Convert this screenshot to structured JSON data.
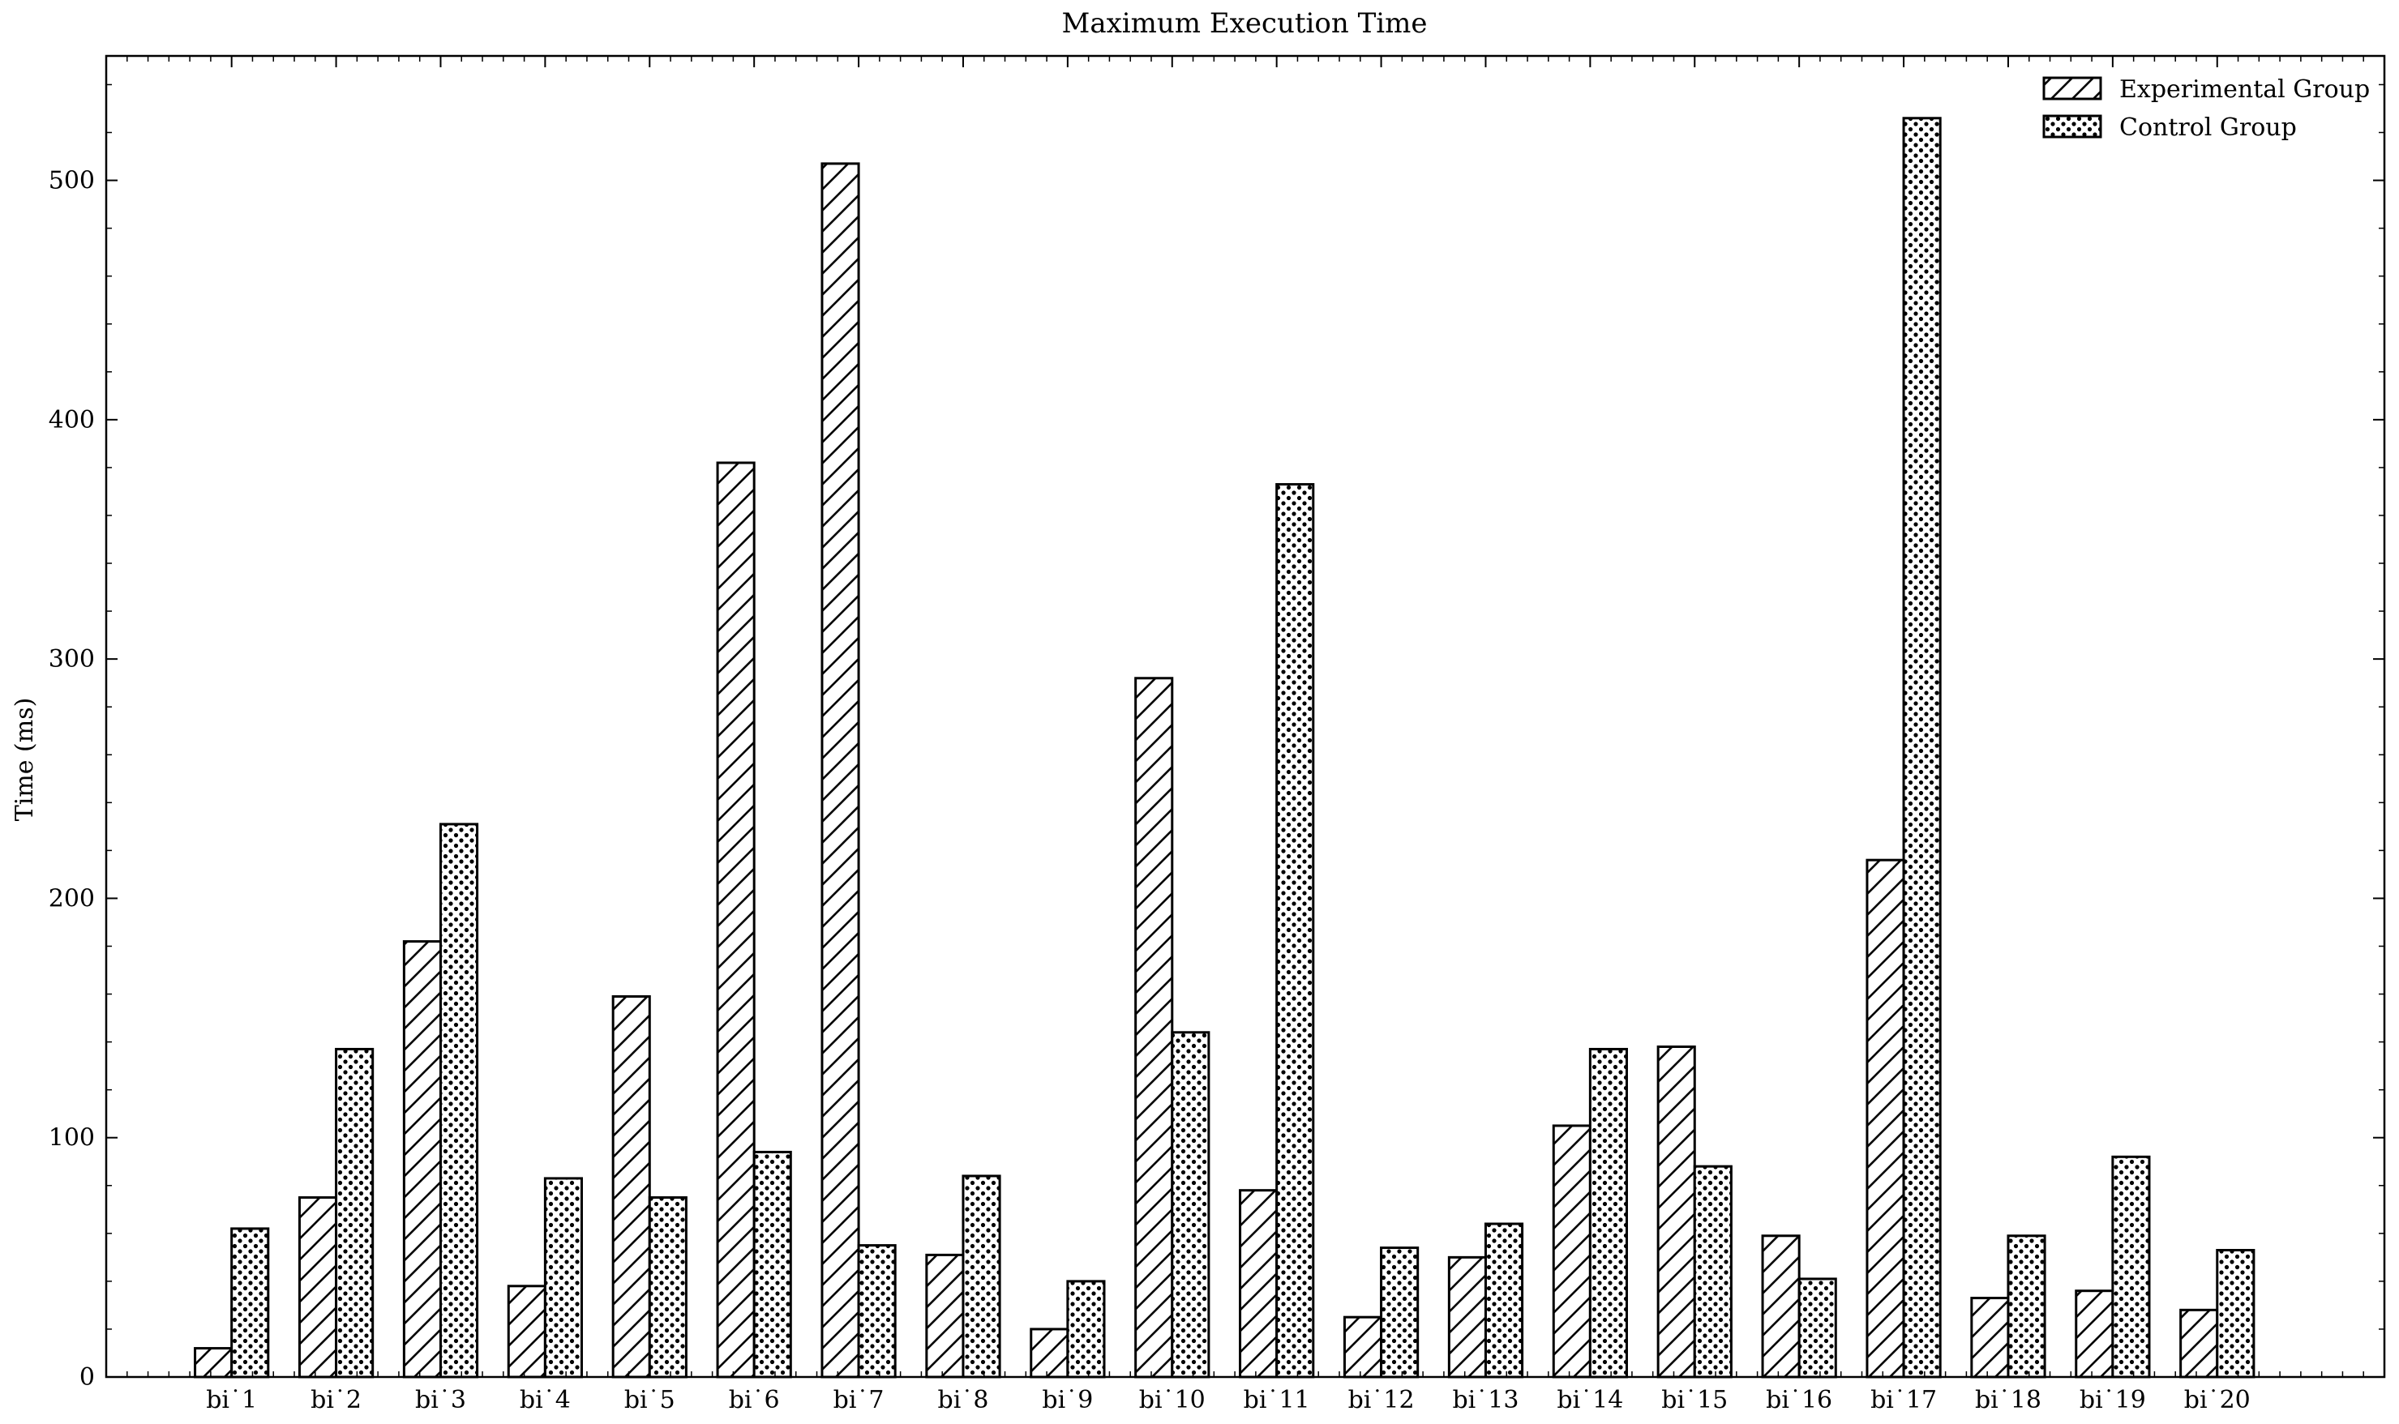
{
  "chart_data": {
    "type": "bar",
    "title": "Maximum Execution Time",
    "xlabel": "",
    "ylabel": "Time (ms)",
    "ylim": [
      0,
      552
    ],
    "yticks": [
      0,
      100,
      200,
      300,
      400,
      500
    ],
    "categories": [
      "bi˙1",
      "bi˙2",
      "bi˙3",
      "bi˙4",
      "bi˙5",
      "bi˙6",
      "bi˙7",
      "bi˙8",
      "bi˙9",
      "bi˙10",
      "bi˙11",
      "bi˙12",
      "bi˙13",
      "bi˙14",
      "bi˙15",
      "bi˙16",
      "bi˙17",
      "bi˙18",
      "bi˙19",
      "bi˙20"
    ],
    "series": [
      {
        "name": "Experimental Group",
        "pattern": "hatch",
        "values": [
          12,
          75,
          182,
          38,
          159,
          382,
          507,
          51,
          20,
          292,
          78,
          25,
          50,
          105,
          138,
          59,
          216,
          33,
          36,
          28
        ]
      },
      {
        "name": "Control Group",
        "pattern": "dots",
        "values": [
          62,
          137,
          231,
          83,
          75,
          94,
          55,
          84,
          40,
          144,
          373,
          54,
          64,
          137,
          88,
          41,
          526,
          59,
          92,
          53
        ]
      }
    ],
    "legend_position": "top-right",
    "grid": false
  }
}
